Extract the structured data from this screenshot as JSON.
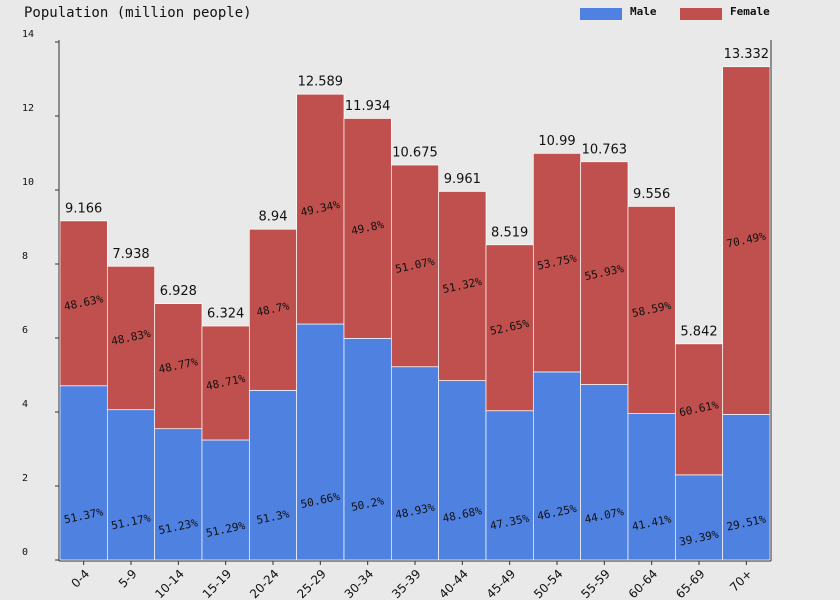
{
  "chart_data": {
    "type": "stacked_bar",
    "title": "Population (million people)",
    "categories": [
      "0-4",
      "5-9",
      "10-14",
      "15-19",
      "20-24",
      "25-29",
      "30-34",
      "35-39",
      "40-44",
      "45-49",
      "50-54",
      "55-59",
      "60-64",
      "65-69",
      "70+"
    ],
    "series": [
      {
        "name": "Male",
        "color": "#4f81e0",
        "values": [
          4.709,
          4.062,
          3.549,
          3.244,
          4.586,
          6.378,
          5.991,
          5.223,
          4.849,
          4.034,
          5.083,
          4.743,
          3.957,
          2.301,
          3.934
        ],
        "value_labels": [
          "51.37%",
          "51.17%",
          "51.23%",
          "51.29%",
          "51.3%",
          "50.66%",
          "50.2%",
          "48.93%",
          "48.68%",
          "47.35%",
          "46.25%",
          "44.07%",
          "41.41%",
          "39.39%",
          "29.51%"
        ]
      },
      {
        "name": "Female",
        "color": "#c0504d",
        "values": [
          4.457,
          3.876,
          3.379,
          3.08,
          4.354,
          6.211,
          5.943,
          5.452,
          5.112,
          4.485,
          5.907,
          6.02,
          5.599,
          3.541,
          9.398
        ],
        "value_labels": [
          "48.63%",
          "48.83%",
          "48.77%",
          "48.71%",
          "48.7%",
          "49.34%",
          "49.8%",
          "51.07%",
          "51.32%",
          "52.65%",
          "53.75%",
          "55.93%",
          "58.59%",
          "60.61%",
          "70.49%"
        ]
      }
    ],
    "totals": [
      9.166,
      7.938,
      6.928,
      6.324,
      8.94,
      12.589,
      11.934,
      10.675,
      9.961,
      8.519,
      10.99,
      10.763,
      9.556,
      5.842,
      13.332
    ],
    "ylim": [
      0,
      14
    ],
    "yticks": [
      0,
      2,
      4,
      6,
      8,
      10,
      12,
      14
    ],
    "legend": "top-right"
  }
}
